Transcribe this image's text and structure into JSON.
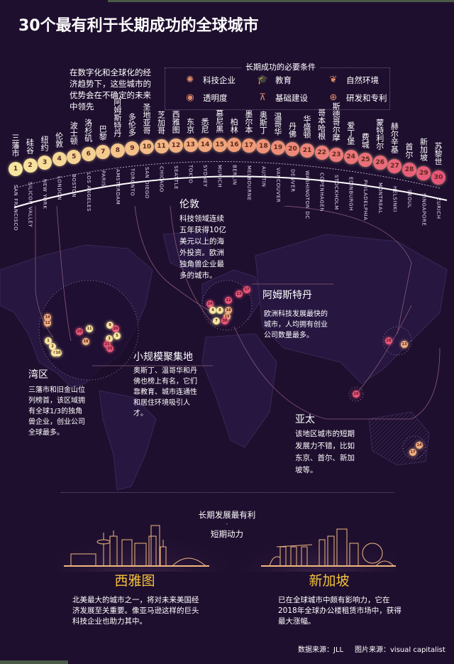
{
  "title": "30个最有利于长期成功的全球城市",
  "intro": "在数字化和全球化的经济趋势下，这些城市的优势会在不确定的未来中领先",
  "legend": {
    "title": "长期成功的必要条件",
    "items": [
      {
        "icon": "tech-companies-icon",
        "glyph": "✺",
        "label": "科技企业"
      },
      {
        "icon": "education-icon",
        "glyph": "🎓",
        "label": "教育"
      },
      {
        "icon": "nature-icon",
        "glyph": "❦",
        "label": "自然环境"
      },
      {
        "icon": "transparency-icon",
        "glyph": "◉",
        "label": "透明度"
      },
      {
        "icon": "infrastructure-icon",
        "glyph": "⊼",
        "label": "基础建设"
      },
      {
        "icon": "rd-patents-icon",
        "glyph": "⊕",
        "label": "研发和专利"
      }
    ]
  },
  "ranking": [
    {
      "rank": "1",
      "cn": "三藩市",
      "en": "SAN FRANCISCO"
    },
    {
      "rank": "2",
      "cn": "硅谷",
      "en": "SILICON VALLEY"
    },
    {
      "rank": "3",
      "cn": "纽约",
      "en": "NEW YORK"
    },
    {
      "rank": "4",
      "cn": "伦敦",
      "en": "LONDON"
    },
    {
      "rank": "5",
      "cn": "波士顿",
      "en": "BOSTON"
    },
    {
      "rank": "6",
      "cn": "洛杉矶",
      "en": "LOS ANGELES"
    },
    {
      "rank": "7",
      "cn": "巴黎",
      "en": "PARIS"
    },
    {
      "rank": "8",
      "cn": "阿姆斯特丹",
      "en": "AMSTERDAM"
    },
    {
      "rank": "9",
      "cn": "多伦多",
      "en": "TORONTO"
    },
    {
      "rank": "10",
      "cn": "圣地亚哥",
      "en": "SAN DIEGO"
    },
    {
      "rank": "11",
      "cn": "芝加哥",
      "en": "CHICAGO"
    },
    {
      "rank": "12",
      "cn": "西雅图",
      "en": "SEATTLE"
    },
    {
      "rank": "13",
      "cn": "东京",
      "en": "TOKYO"
    },
    {
      "rank": "14",
      "cn": "悉尼",
      "en": "SYDNEY"
    },
    {
      "rank": "15",
      "cn": "慕尼黑",
      "en": "MUNICH"
    },
    {
      "rank": "16",
      "cn": "柏林",
      "en": "BERLIN"
    },
    {
      "rank": "17",
      "cn": "墨尔本",
      "en": "MELBOURNE"
    },
    {
      "rank": "18",
      "cn": "奥斯丁",
      "en": "AUSTIN"
    },
    {
      "rank": "19",
      "cn": "温哥华",
      "en": "VANCOUVER"
    },
    {
      "rank": "20",
      "cn": "丹佛",
      "en": "DENVER"
    },
    {
      "rank": "21",
      "cn": "华盛顿",
      "en": "WASHINGTON DC"
    },
    {
      "rank": "22",
      "cn": "哥本哈根",
      "en": "COPENHAGEN"
    },
    {
      "rank": "23",
      "cn": "斯德哥尔摩",
      "en": "STOCKHOLM"
    },
    {
      "rank": "24",
      "cn": "爱丁堡",
      "en": "EDINBURGH"
    },
    {
      "rank": "25",
      "cn": "费城",
      "en": "PHILADELPHIA"
    },
    {
      "rank": "26",
      "cn": "蒙特利尔",
      "en": "MONTREAL"
    },
    {
      "rank": "27",
      "cn": "赫尔辛基",
      "en": "HELSINKI"
    },
    {
      "rank": "28",
      "cn": "首尔",
      "en": "SEOUL"
    },
    {
      "rank": "29",
      "cn": "新加坡",
      "en": "SINGAPORE"
    },
    {
      "rank": "30",
      "cn": "苏黎世",
      "en": "ZURICH"
    }
  ],
  "callouts": {
    "london": {
      "heading": "伦敦",
      "body": "科技领域连续五年获得10亿美元以上的海外投资。欧洲独角兽企业最多的城市。"
    },
    "amsterdam": {
      "heading": "阿姆斯特丹",
      "body": "欧洲科技发展最快的城市，人均拥有创业公司数量最多。"
    },
    "small_cluster": {
      "heading": "小规模聚集地",
      "body": "奥斯丁、温哥华和丹佛也榜上有名，它们靠教育、城市连通性和居住环境吸引人才。"
    },
    "bay_area": {
      "heading": "湾区",
      "body": "三藩市和旧金山位列榜首，该区域拥有全球1/3的独角兽企业，创业公司全球最多。"
    },
    "apac": {
      "heading": "亚太",
      "body": "该地区城市的短期发展力不错，比如东京、首尔、新加坡等。"
    }
  },
  "map_pins": {
    "north_america": [
      "19",
      "12",
      "1",
      "2",
      "6",
      "10",
      "20",
      "18",
      "11",
      "9",
      "26",
      "5",
      "3",
      "21",
      "25"
    ],
    "europe": [
      "27",
      "23",
      "22",
      "24",
      "4",
      "8",
      "16",
      "15",
      "7",
      "30"
    ],
    "asia": [
      "28",
      "13",
      "29"
    ],
    "australia": [
      "14",
      "17"
    ]
  },
  "comparison": {
    "title_top": "长期发展最有利",
    "separator": "-",
    "title_bottom": "短期动力"
  },
  "featured": [
    {
      "name": "西雅图",
      "desc": "北美最大的城市之一，将对未来美国经济发展至关重要。像亚马逊这样的巨头科技企业也助力其中。"
    },
    {
      "name": "新加坡",
      "desc": "已在全球城市中颇有影响力，它在2018年全球办公楼租赁市场中，获得最大涨幅。"
    }
  ],
  "footer": {
    "data_source": "数据来源：JLL",
    "image_source": "图片来源：visual capitalist"
  },
  "colors": {
    "background": "#1f0f2f",
    "accent_gold": "#f4c23b",
    "bubble_start": "#f6e7a0",
    "bubble_end": "#e8557a",
    "legend_icon": "#e08a6a"
  }
}
